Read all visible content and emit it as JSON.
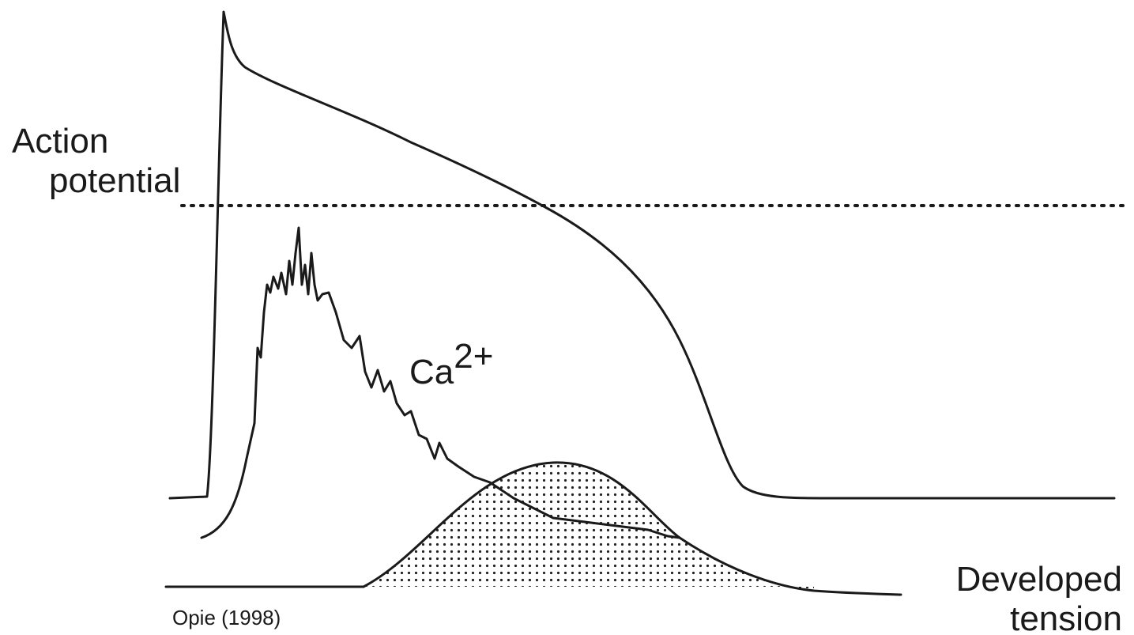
{
  "labels": {
    "action_potential": [
      "Action",
      "potential"
    ],
    "calcium": {
      "base": "Ca",
      "sup": "2+"
    },
    "developed_tension": [
      "Developed",
      "tension"
    ],
    "source": "Opie (1998)"
  }
}
